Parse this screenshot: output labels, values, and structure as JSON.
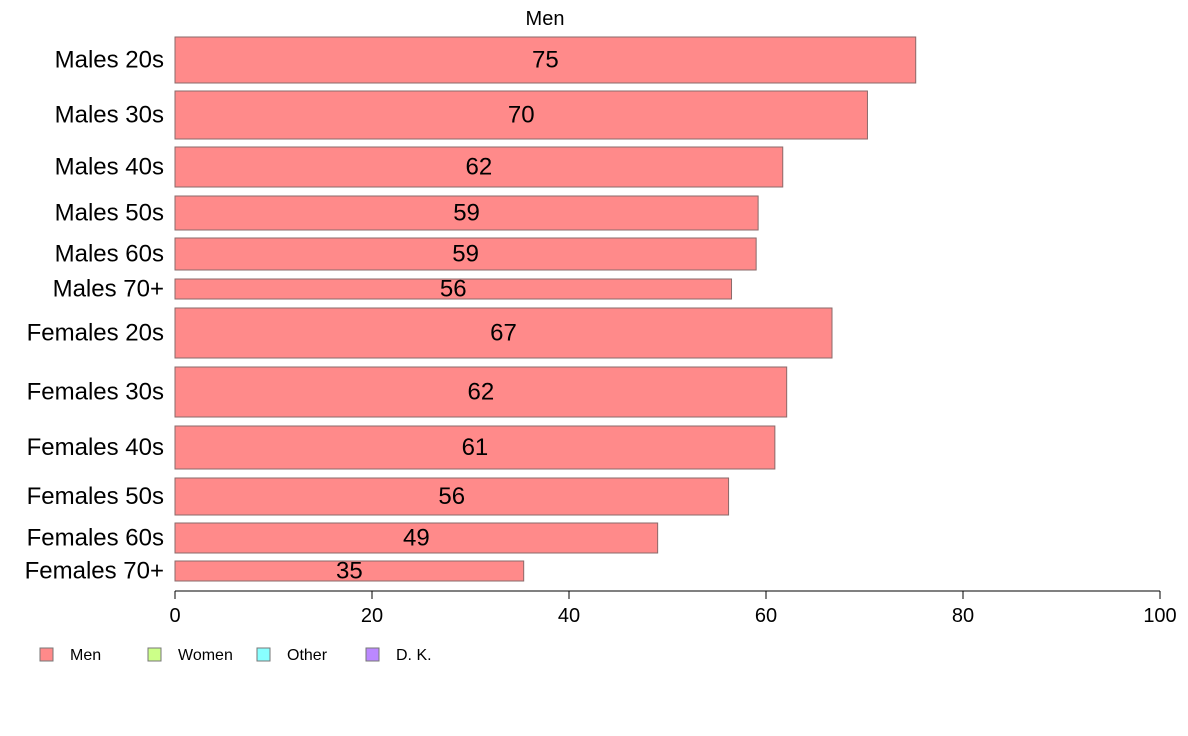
{
  "chart_data": {
    "type": "bar",
    "orientation": "horizontal",
    "title": "Men",
    "categories": [
      "Males 20s",
      "Males 30s",
      "Males 40s",
      "Males 50s",
      "Males 60s",
      "Males 70+",
      "Females 20s",
      "Females 30s",
      "Females 40s",
      "Females 50s",
      "Females 60s",
      "Females 70+"
    ],
    "values": [
      75.2,
      70.3,
      61.7,
      59.2,
      59.0,
      56.5,
      66.7,
      62.1,
      60.9,
      56.2,
      49.0,
      35.4
    ],
    "value_labels": [
      "75",
      "70",
      "62",
      "59",
      "59",
      "56",
      "67",
      "62",
      "61",
      "56",
      "49",
      "35"
    ],
    "xlim": [
      0,
      100
    ],
    "xticks": [
      0,
      20,
      40,
      60,
      80,
      100
    ],
    "xtick_labels": [
      "0",
      "20",
      "40",
      "60",
      "80",
      "100"
    ],
    "bar_color": "#ff8a8a",
    "legend": {
      "placement": "bottom-left",
      "entries": [
        {
          "label": "Men",
          "color": "#ff8a8a"
        },
        {
          "label": "Women",
          "color": "#ccff88"
        },
        {
          "label": "Other",
          "color": "#88ffff"
        },
        {
          "label": "D. K.",
          "color": "#bb88ff"
        }
      ]
    }
  }
}
